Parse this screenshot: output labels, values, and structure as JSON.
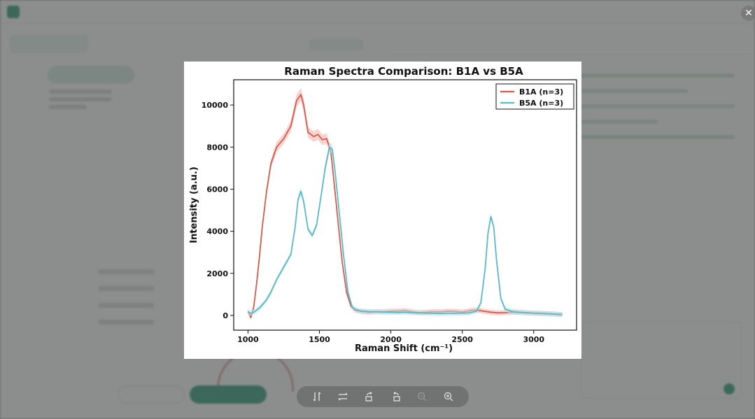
{
  "viewer": {
    "close_icon": "close-icon",
    "toolbar": [
      {
        "name": "flip-vertical",
        "icon": "flip-vertical-icon",
        "enabled": true
      },
      {
        "name": "flip-horizontal",
        "icon": "flip-horizontal-icon",
        "enabled": true
      },
      {
        "name": "rotate-right",
        "icon": "rotate-right-icon",
        "enabled": true
      },
      {
        "name": "rotate-left",
        "icon": "rotate-left-icon",
        "enabled": true
      },
      {
        "name": "zoom-out",
        "icon": "zoom-out-icon",
        "enabled": false
      },
      {
        "name": "zoom-in",
        "icon": "zoom-in-icon",
        "enabled": true
      }
    ]
  },
  "chart_data": {
    "type": "line",
    "title": "Raman Spectra Comparison: B1A vs B5A",
    "xlabel": "Raman Shift (cm⁻¹)",
    "ylabel": "Intensity (a.u.)",
    "xlim": [
      900,
      3300
    ],
    "ylim": [
      -700,
      11200
    ],
    "xticks": [
      1000,
      1500,
      2000,
      2500,
      3000
    ],
    "yticks": [
      0,
      2000,
      4000,
      6000,
      8000,
      10000
    ],
    "grid": false,
    "legend_position": "top-right",
    "series": [
      {
        "name": "B1A (n=3)",
        "color": "#d45a4c",
        "band_color": "#f2b8b0",
        "x": [
          1000,
          1020,
          1040,
          1060,
          1080,
          1100,
          1130,
          1160,
          1200,
          1250,
          1300,
          1340,
          1370,
          1390,
          1420,
          1460,
          1490,
          1520,
          1550,
          1580,
          1600,
          1630,
          1660,
          1690,
          1720,
          1750,
          1800,
          1850,
          1900,
          1950,
          2000,
          2050,
          2100,
          2150,
          2200,
          2250,
          2300,
          2350,
          2400,
          2450,
          2500,
          2550,
          2600,
          2650,
          2700,
          2750,
          2800,
          2850,
          2900,
          2950,
          3000,
          3050,
          3100,
          3150,
          3200
        ],
        "y": [
          200,
          -100,
          400,
          1500,
          2800,
          4200,
          5900,
          7200,
          8000,
          8400,
          9000,
          10200,
          10500,
          10000,
          8700,
          8500,
          8600,
          8350,
          8400,
          7800,
          6500,
          4500,
          2500,
          1100,
          450,
          250,
          180,
          150,
          180,
          170,
          200,
          210,
          230,
          170,
          130,
          150,
          180,
          170,
          200,
          190,
          160,
          220,
          260,
          200,
          150,
          120,
          130,
          150,
          140,
          120,
          100,
          90,
          80,
          60,
          40
        ]
      },
      {
        "name": "B5A (n=3)",
        "color": "#5ab9c9",
        "band_color": "#b8e2ea",
        "x": [
          1000,
          1020,
          1040,
          1060,
          1080,
          1100,
          1130,
          1160,
          1200,
          1250,
          1300,
          1330,
          1350,
          1370,
          1390,
          1420,
          1450,
          1480,
          1510,
          1540,
          1570,
          1590,
          1610,
          1640,
          1670,
          1700,
          1730,
          1760,
          1800,
          1850,
          1900,
          1950,
          2000,
          2050,
          2100,
          2150,
          2200,
          2250,
          2300,
          2350,
          2400,
          2450,
          2500,
          2550,
          2600,
          2630,
          2660,
          2680,
          2700,
          2720,
          2740,
          2770,
          2800,
          2850,
          2900,
          2950,
          3000,
          3050,
          3100,
          3150,
          3200
        ],
        "y": [
          150,
          100,
          150,
          250,
          350,
          500,
          750,
          1100,
          1700,
          2300,
          2900,
          4200,
          5500,
          5900,
          5400,
          4100,
          3800,
          4300,
          5600,
          7000,
          8000,
          7900,
          6800,
          4800,
          2800,
          1100,
          380,
          250,
          200,
          180,
          170,
          160,
          150,
          140,
          150,
          130,
          120,
          110,
          100,
          90,
          100,
          100,
          110,
          120,
          200,
          600,
          2200,
          3900,
          4700,
          4200,
          2600,
          800,
          300,
          180,
          150,
          130,
          110,
          100,
          80,
          60,
          40
        ]
      }
    ]
  }
}
